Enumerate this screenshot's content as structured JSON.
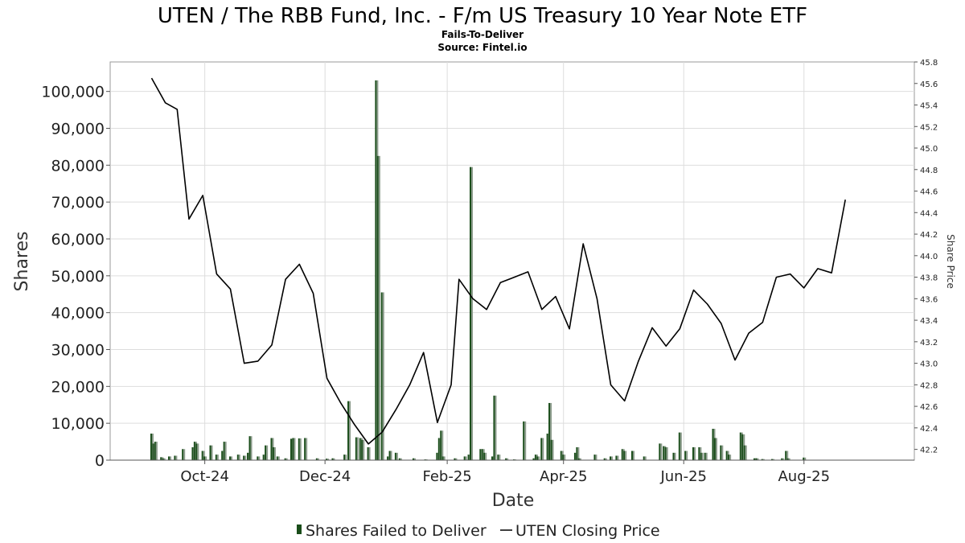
{
  "chart_data": {
    "type": "bar",
    "title": "UTEN / The RBB Fund, Inc. - F/m US Treasury 10 Year Note ETF",
    "subtitle_lines": [
      "Fails-To-Deliver",
      "Source: Fintel.io"
    ],
    "xlabel": "Date",
    "ylabel": "Shares",
    "y2label": "Share Price",
    "xlim": [
      "2024-08-14",
      "2025-09-26"
    ],
    "ylim": [
      0,
      108000
    ],
    "y2lim": [
      42.1,
      45.8
    ],
    "x_ticks": [
      {
        "date": "2024-10-01",
        "label": "Oct-24"
      },
      {
        "date": "2024-12-01",
        "label": "Dec-24"
      },
      {
        "date": "2025-02-01",
        "label": "Feb-25"
      },
      {
        "date": "2025-04-01",
        "label": "Apr-25"
      },
      {
        "date": "2025-06-01",
        "label": "Jun-25"
      },
      {
        "date": "2025-08-01",
        "label": "Aug-25"
      }
    ],
    "y_ticks": [
      0,
      10000,
      20000,
      30000,
      40000,
      50000,
      60000,
      70000,
      80000,
      90000,
      100000
    ],
    "y_tick_labels": [
      "0",
      "10,000",
      "20,000",
      "30,000",
      "40,000",
      "50,000",
      "60,000",
      "70,000",
      "80,000",
      "90,000",
      "100,000"
    ],
    "y2_ticks": [
      42.2,
      42.4,
      42.6,
      42.8,
      43.0,
      43.2,
      43.4,
      43.6,
      43.8,
      44.0,
      44.2,
      44.4,
      44.6,
      44.8,
      45.0,
      45.2,
      45.4,
      45.6,
      45.8
    ],
    "y2_tick_labels": [
      "42.2",
      "42.4",
      "42.6",
      "42.8",
      "43.0",
      "43.2",
      "43.4",
      "43.6",
      "43.8",
      "44.0",
      "44.2",
      "44.4",
      "44.6",
      "44.8",
      "45.0",
      "45.2",
      "45.4",
      "45.6",
      "45.8"
    ],
    "grid": true,
    "legend_position": "bottom-center",
    "series": [
      {
        "name": "Shares Failed to Deliver",
        "type": "bar",
        "color": "#1a4d1a",
        "points": [
          [
            "2024-09-04",
            7200
          ],
          [
            "2024-09-05",
            4500
          ],
          [
            "2024-09-06",
            5000
          ],
          [
            "2024-09-09",
            800
          ],
          [
            "2024-09-10",
            500
          ],
          [
            "2024-09-13",
            1000
          ],
          [
            "2024-09-16",
            1200
          ],
          [
            "2024-09-25",
            3500
          ],
          [
            "2024-09-26",
            5000
          ],
          [
            "2024-09-27",
            4500
          ],
          [
            "2024-09-30",
            2500
          ],
          [
            "2024-10-01",
            1000
          ],
          [
            "2024-09-20",
            3000
          ],
          [
            "2024-10-04",
            4000
          ],
          [
            "2024-10-07",
            1500
          ],
          [
            "2024-10-10",
            2500
          ],
          [
            "2024-10-11",
            5000
          ],
          [
            "2024-10-14",
            1000
          ],
          [
            "2024-10-18",
            1500
          ],
          [
            "2024-10-21",
            1200
          ],
          [
            "2024-10-23",
            2000
          ],
          [
            "2024-10-24",
            6500
          ],
          [
            "2024-10-28",
            1000
          ],
          [
            "2024-10-31",
            1500
          ],
          [
            "2024-11-01",
            4000
          ],
          [
            "2024-11-04",
            6000
          ],
          [
            "2024-11-05",
            3500
          ],
          [
            "2024-11-07",
            1000
          ],
          [
            "2024-11-11",
            500
          ],
          [
            "2024-11-14",
            5800
          ],
          [
            "2024-11-15",
            6000
          ],
          [
            "2024-11-18",
            5900
          ],
          [
            "2024-11-21",
            6000
          ],
          [
            "2024-11-27",
            500
          ],
          [
            "2024-12-02",
            400
          ],
          [
            "2024-12-05",
            500
          ],
          [
            "2024-12-11",
            1500
          ],
          [
            "2024-12-13",
            16000
          ],
          [
            "2024-12-17",
            6200
          ],
          [
            "2024-12-19",
            6000
          ],
          [
            "2024-12-20",
            5500
          ],
          [
            "2024-12-23",
            3500
          ],
          [
            "2024-12-27",
            103000
          ],
          [
            "2024-12-28",
            82500
          ],
          [
            "2024-12-30",
            45500
          ],
          [
            "2025-01-02",
            1000
          ],
          [
            "2025-01-03",
            2500
          ],
          [
            "2025-01-06",
            2000
          ],
          [
            "2025-01-08",
            500
          ],
          [
            "2025-01-15",
            500
          ],
          [
            "2025-01-21",
            200
          ],
          [
            "2025-01-27",
            2000
          ],
          [
            "2025-01-28",
            6000
          ],
          [
            "2025-01-29",
            8000
          ],
          [
            "2025-01-30",
            1000
          ],
          [
            "2025-02-05",
            500
          ],
          [
            "2025-02-10",
            1000
          ],
          [
            "2025-02-12",
            1500
          ],
          [
            "2025-02-13",
            79500
          ],
          [
            "2025-02-18",
            3000
          ],
          [
            "2025-02-19",
            3000
          ],
          [
            "2025-02-20",
            2000
          ],
          [
            "2025-02-24",
            1000
          ],
          [
            "2025-02-25",
            17500
          ],
          [
            "2025-02-27",
            1500
          ],
          [
            "2025-03-03",
            500
          ],
          [
            "2025-03-07",
            200
          ],
          [
            "2025-03-12",
            10500
          ],
          [
            "2025-03-17",
            500
          ],
          [
            "2025-03-18",
            1500
          ],
          [
            "2025-03-19",
            1000
          ],
          [
            "2025-03-21",
            6000
          ],
          [
            "2025-03-24",
            7200
          ],
          [
            "2025-03-25",
            15500
          ],
          [
            "2025-03-26",
            5500
          ],
          [
            "2025-03-31",
            2500
          ],
          [
            "2025-04-01",
            1500
          ],
          [
            "2025-04-07",
            2000
          ],
          [
            "2025-04-08",
            3500
          ],
          [
            "2025-04-09",
            500
          ],
          [
            "2025-04-17",
            1500
          ],
          [
            "2025-04-22",
            500
          ],
          [
            "2025-04-25",
            1000
          ],
          [
            "2025-04-28",
            1200
          ],
          [
            "2025-05-01",
            3000
          ],
          [
            "2025-05-02",
            2500
          ],
          [
            "2025-05-06",
            2500
          ],
          [
            "2025-05-12",
            1000
          ],
          [
            "2025-05-20",
            4500
          ],
          [
            "2025-05-22",
            3800
          ],
          [
            "2025-05-23",
            3500
          ],
          [
            "2025-05-27",
            2000
          ],
          [
            "2025-05-30",
            7500
          ],
          [
            "2025-06-02",
            2500
          ],
          [
            "2025-06-06",
            3500
          ],
          [
            "2025-06-09",
            3500
          ],
          [
            "2025-06-10",
            2000
          ],
          [
            "2025-06-12",
            2000
          ],
          [
            "2025-06-16",
            8500
          ],
          [
            "2025-06-17",
            6000
          ],
          [
            "2025-06-20",
            4000
          ],
          [
            "2025-06-23",
            2500
          ],
          [
            "2025-06-24",
            1500
          ],
          [
            "2025-06-30",
            7500
          ],
          [
            "2025-07-01",
            7000
          ],
          [
            "2025-07-02",
            4000
          ],
          [
            "2025-07-07",
            500
          ],
          [
            "2025-07-08",
            500
          ],
          [
            "2025-07-11",
            300
          ],
          [
            "2025-07-16",
            300
          ],
          [
            "2025-07-21",
            500
          ],
          [
            "2025-07-23",
            2500
          ],
          [
            "2025-07-24",
            500
          ],
          [
            "2025-08-01",
            700
          ]
        ]
      },
      {
        "name": "UTEN Closing Price",
        "type": "line",
        "color": "#000000",
        "points": [
          [
            "2024-09-04",
            45.65
          ],
          [
            "2024-09-11",
            45.42
          ],
          [
            "2024-09-17",
            45.36
          ],
          [
            "2024-09-23",
            44.34
          ],
          [
            "2024-09-30",
            44.56
          ],
          [
            "2024-10-07",
            43.83
          ],
          [
            "2024-10-14",
            43.69
          ],
          [
            "2024-10-21",
            43.0
          ],
          [
            "2024-10-28",
            43.02
          ],
          [
            "2024-11-04",
            43.17
          ],
          [
            "2024-11-11",
            43.78
          ],
          [
            "2024-11-18",
            43.92
          ],
          [
            "2024-11-25",
            43.65
          ],
          [
            "2024-12-02",
            42.86
          ],
          [
            "2024-12-09",
            42.63
          ],
          [
            "2024-12-16",
            42.43
          ],
          [
            "2024-12-23",
            42.25
          ],
          [
            "2024-12-30",
            42.36
          ],
          [
            "2025-01-06",
            42.57
          ],
          [
            "2025-01-13",
            42.8
          ],
          [
            "2025-01-20",
            43.1
          ],
          [
            "2025-01-27",
            42.45
          ],
          [
            "2025-02-03",
            42.8
          ],
          [
            "2025-02-07",
            43.78
          ],
          [
            "2025-02-14",
            43.6
          ],
          [
            "2025-02-21",
            43.5
          ],
          [
            "2025-02-28",
            43.75
          ],
          [
            "2025-03-07",
            43.8
          ],
          [
            "2025-03-14",
            43.85
          ],
          [
            "2025-03-21",
            43.5
          ],
          [
            "2025-03-28",
            43.62
          ],
          [
            "2025-04-04",
            43.32
          ],
          [
            "2025-04-11",
            44.11
          ],
          [
            "2025-04-18",
            43.6
          ],
          [
            "2025-04-25",
            42.8
          ],
          [
            "2025-05-02",
            42.65
          ],
          [
            "2025-05-09",
            43.02
          ],
          [
            "2025-05-16",
            43.33
          ],
          [
            "2025-05-23",
            43.16
          ],
          [
            "2025-05-30",
            43.32
          ],
          [
            "2025-06-06",
            43.68
          ],
          [
            "2025-06-13",
            43.55
          ],
          [
            "2025-06-20",
            43.37
          ],
          [
            "2025-06-27",
            43.03
          ],
          [
            "2025-07-04",
            43.28
          ],
          [
            "2025-07-11",
            43.38
          ],
          [
            "2025-07-18",
            43.8
          ],
          [
            "2025-07-25",
            43.83
          ],
          [
            "2025-08-01",
            43.7
          ],
          [
            "2025-08-08",
            43.88
          ],
          [
            "2025-08-15",
            43.84
          ],
          [
            "2025-08-22",
            44.52
          ]
        ]
      }
    ]
  }
}
